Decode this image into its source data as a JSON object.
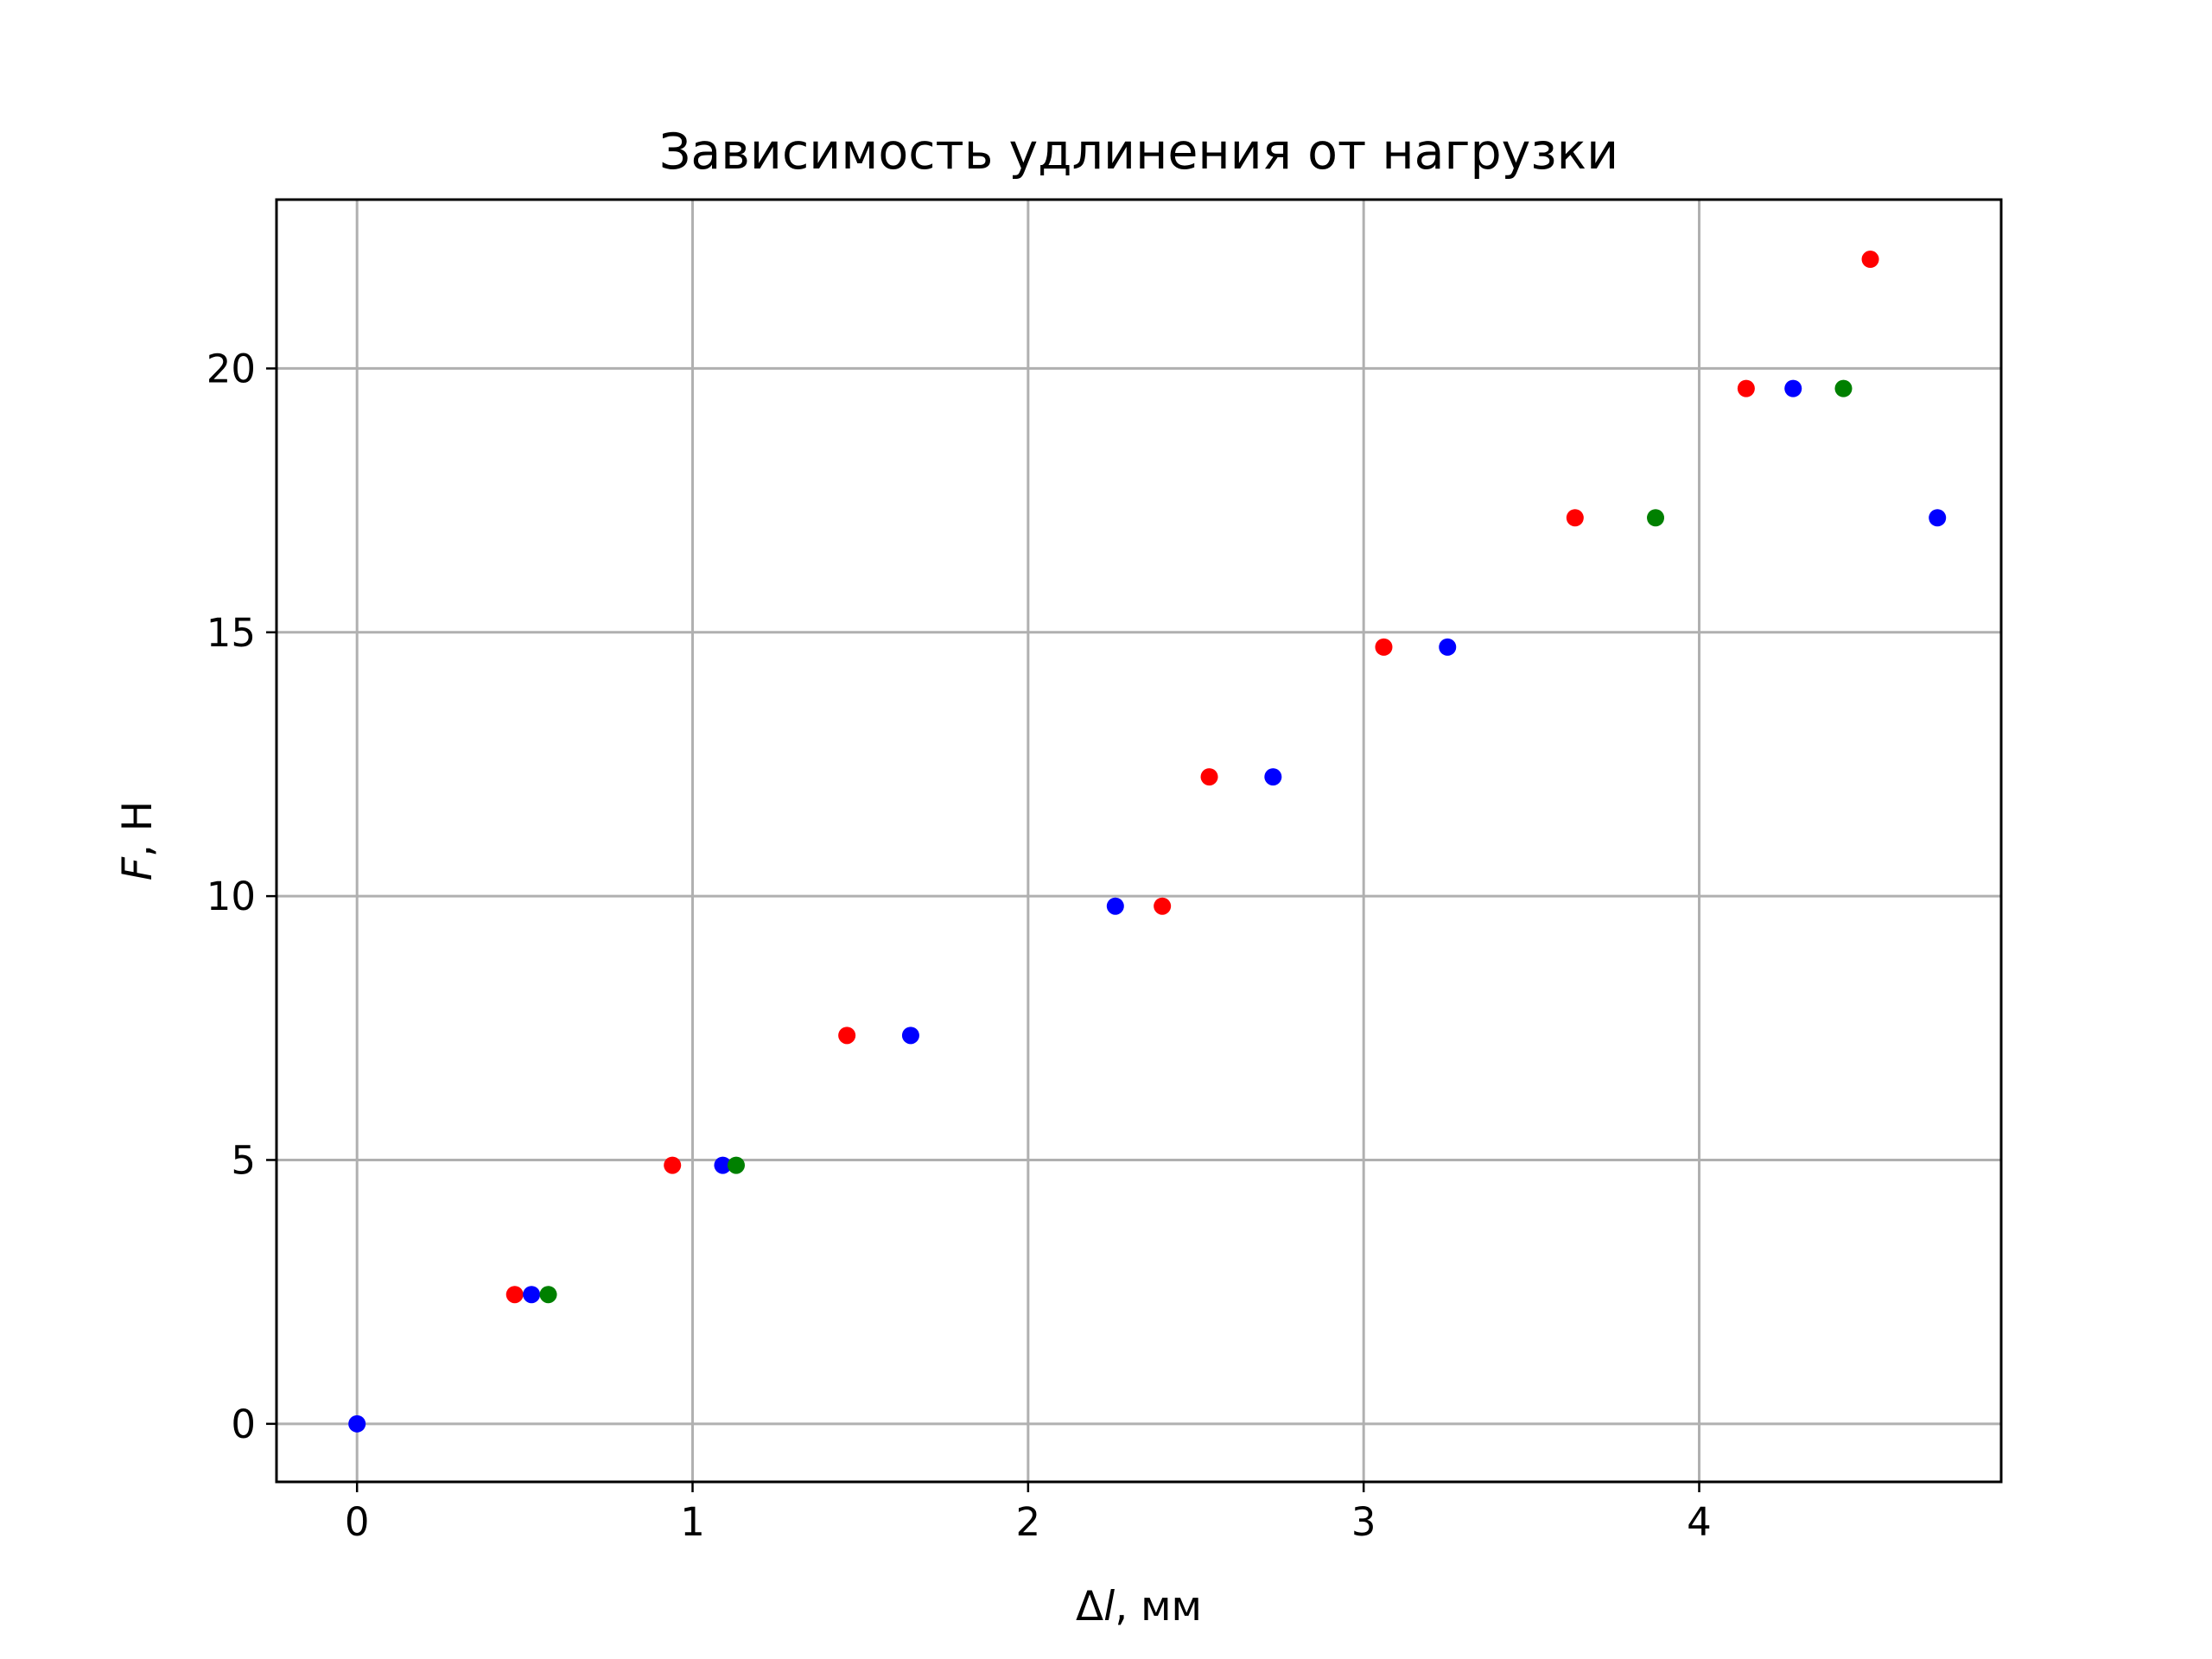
{
  "chart_data": {
    "type": "scatter",
    "title": "Зависимость удлинения от нагрузки",
    "xlabel_symbol": "Δ",
    "xlabel_var": "l",
    "xlabel_unit": ", мм",
    "ylabel_var": "F",
    "ylabel_unit": ", Н",
    "xlim": [
      -0.24,
      4.9
    ],
    "ylim": [
      -1.1,
      23.2
    ],
    "xticks": [
      0,
      1,
      2,
      3,
      4
    ],
    "yticks": [
      0,
      5,
      10,
      15,
      20
    ],
    "grid": true,
    "series": [
      {
        "color": "#ff0000",
        "x": [
          0.47,
          0.94,
          1.46,
          2.4,
          2.54,
          3.06,
          3.63,
          4.14,
          4.51
        ],
        "y": [
          2.45,
          4.9,
          7.36,
          9.81,
          12.26,
          14.72,
          17.17,
          19.62,
          22.07
        ]
      },
      {
        "color": "#0000ff",
        "x": [
          0.0,
          0.52,
          1.09,
          1.65,
          2.26,
          2.73,
          3.25,
          4.28,
          4.71
        ],
        "y": [
          0.0,
          2.45,
          4.9,
          7.36,
          9.81,
          12.26,
          14.72,
          19.62,
          17.17
        ]
      },
      {
        "color": "#008000",
        "x": [
          0.57,
          1.13,
          3.87,
          4.43
        ],
        "y": [
          2.45,
          4.9,
          17.17,
          19.62
        ]
      }
    ]
  }
}
